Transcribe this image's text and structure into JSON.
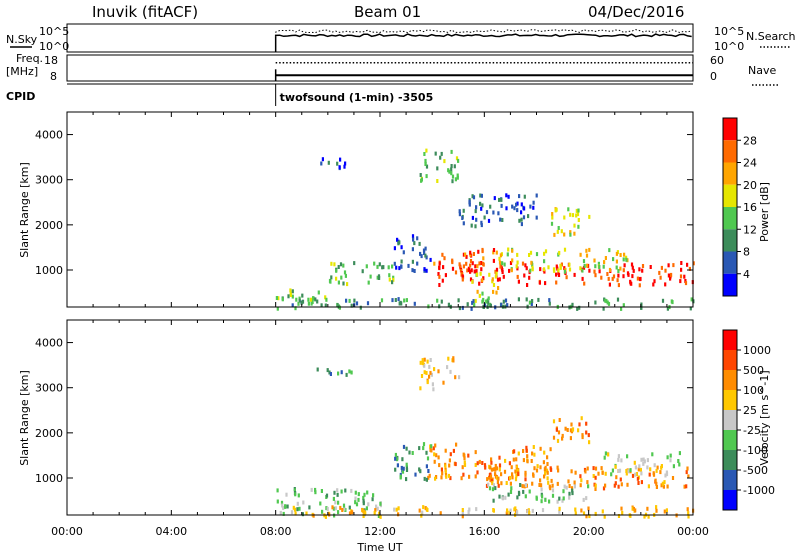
{
  "header": {
    "radar_title": "Inuvik (fitACF)",
    "beam": "Beam 01",
    "date": "04/Dec/2016"
  },
  "top_panels": {
    "nsky_label": "N.Sky",
    "nsky_ticks": [
      "10^5",
      "10^0"
    ],
    "nsearch_label": "N.Search",
    "nsearch_ticks": [
      "10^5",
      "10^0"
    ],
    "freq_label": "Freq.",
    "freq_unit": "[MHz]",
    "freq_ticks": [
      "18",
      "8"
    ],
    "nave_label": "Nave",
    "nave_ticks": [
      "60",
      "0"
    ],
    "cpid_label": "CPID",
    "cpid_text": "twofsound (1-min) -3505",
    "nsky_level": 0.55,
    "freq_level": 0.45,
    "nave_level": 0.55,
    "data_start_hour": 8
  },
  "chart_data": [
    {
      "type": "heatmap",
      "quantity": "Power",
      "ylabel": "Slant Range [km]",
      "ylim": [
        180,
        4500
      ],
      "yticks": [
        "1000",
        "2000",
        "3000",
        "4000"
      ],
      "xlim": [
        0,
        24
      ],
      "colorbar_label": "Power [dB]",
      "colorbar_ticks": [
        "4",
        "8",
        "12",
        "16",
        "20",
        "24",
        "28"
      ],
      "colorbar_range": [
        0,
        32
      ],
      "colors": [
        "#0000ff",
        "#2a58b4",
        "#3c8c5a",
        "#50c850",
        "#e6e600",
        "#ffa500",
        "#ff6a00",
        "#ff0000"
      ],
      "regions": [
        {
          "t": [
            14.2,
            24
          ],
          "r": [
            700,
            1200
          ],
          "level": 7
        },
        {
          "t": [
            14,
            16.5
          ],
          "r": [
            1100,
            1500
          ],
          "level": 6
        },
        {
          "t": [
            16.5,
            21.5
          ],
          "r": [
            1000,
            1500
          ],
          "level": 4
        },
        {
          "t": [
            12.5,
            14
          ],
          "r": [
            1000,
            1800
          ],
          "level": 1
        },
        {
          "t": [
            10,
            12.5
          ],
          "r": [
            700,
            1200
          ],
          "level": 3
        },
        {
          "t": [
            8,
            10
          ],
          "r": [
            180,
            600
          ],
          "level": 3
        },
        {
          "t": [
            8.5,
            24
          ],
          "r": [
            180,
            400
          ],
          "level": 2
        },
        {
          "t": [
            15.5,
            16.5
          ],
          "r": [
            300,
            1000
          ],
          "level": 4
        },
        {
          "t": [
            18.5,
            20
          ],
          "r": [
            1800,
            2400
          ],
          "level": 4
        },
        {
          "t": [
            15,
            18
          ],
          "r": [
            2000,
            2700
          ],
          "level": 1
        },
        {
          "t": [
            13.5,
            15
          ],
          "r": [
            3000,
            3700
          ],
          "level": 3
        },
        {
          "t": [
            9.5,
            11
          ],
          "r": [
            3300,
            3500
          ],
          "level": 1
        }
      ]
    },
    {
      "type": "heatmap",
      "quantity": "Velocity",
      "ylabel": "Slant Range [km]",
      "ylim": [
        180,
        4500
      ],
      "yticks": [
        "1000",
        "2000",
        "3000",
        "4000"
      ],
      "xlim": [
        0,
        24
      ],
      "xticks": [
        "00:00",
        "04:00",
        "08:00",
        "12:00",
        "16:00",
        "20:00",
        "00:00"
      ],
      "xlabel": "Time UT",
      "colorbar_label": "Velocity [m s^-1]",
      "colorbar_ticks": [
        "1000",
        "500",
        "100",
        "25",
        "-25",
        "-100",
        "-500",
        "-1000"
      ],
      "colors": [
        "#0000ff",
        "#2a58b4",
        "#3c8c5a",
        "#50c850",
        "#c8c8c8",
        "#ffc800",
        "#ff8c00",
        "#ff4600",
        "#ff0000"
      ],
      "regions": [
        {
          "t": [
            13.8,
            18.5
          ],
          "r": [
            1000,
            1800
          ],
          "level": 6
        },
        {
          "t": [
            16,
            24
          ],
          "r": [
            800,
            1300
          ],
          "level": 6
        },
        {
          "t": [
            18.5,
            20
          ],
          "r": [
            1800,
            2400
          ],
          "level": 6
        },
        {
          "t": [
            20.5,
            23.5
          ],
          "r": [
            1100,
            1600
          ],
          "level": 4
        },
        {
          "t": [
            16,
            20
          ],
          "r": [
            500,
            900
          ],
          "level": 3
        },
        {
          "t": [
            12.5,
            14
          ],
          "r": [
            1000,
            1800
          ],
          "level": 2
        },
        {
          "t": [
            8,
            12
          ],
          "r": [
            180,
            800
          ],
          "level": 3
        },
        {
          "t": [
            8.5,
            24
          ],
          "r": [
            180,
            400
          ],
          "level": 5
        },
        {
          "t": [
            13.5,
            15
          ],
          "r": [
            3000,
            3700
          ],
          "level": 5
        },
        {
          "t": [
            9.5,
            11
          ],
          "r": [
            3300,
            3500
          ],
          "level": 2
        }
      ]
    }
  ],
  "colors": {
    "accent": "#000000",
    "background": "#ffffff"
  }
}
